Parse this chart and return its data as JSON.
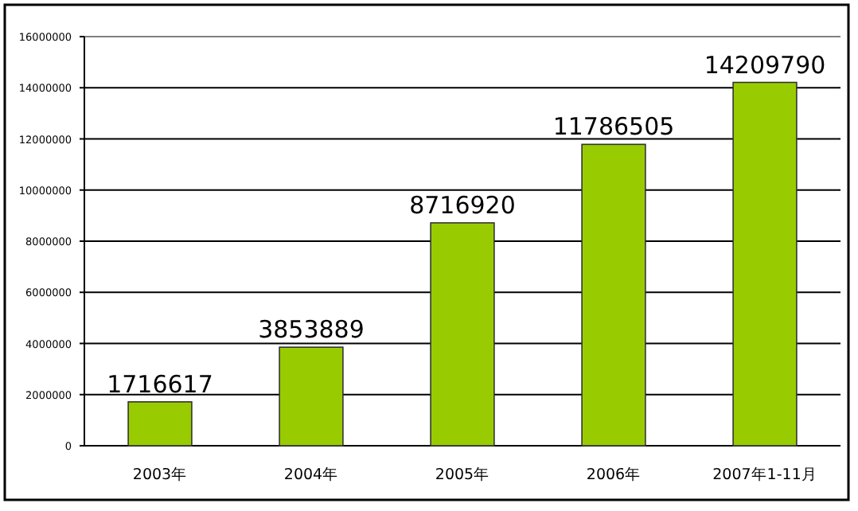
{
  "chart_data": {
    "type": "bar",
    "categories": [
      "2003年",
      "2004年",
      "2005年",
      "2006年",
      "2007年1-11月"
    ],
    "values": [
      1716617,
      3853889,
      8716920,
      11786505,
      14209790
    ],
    "color": "#99cc00",
    "ylim": [
      0,
      16000000
    ],
    "yticks": [
      0,
      2000000,
      4000000,
      6000000,
      8000000,
      10000000,
      12000000,
      14000000,
      16000000
    ],
    "grid": "y",
    "data_labels": true
  }
}
